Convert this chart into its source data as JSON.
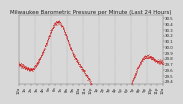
{
  "title": "Milwaukee Barometric Pressure per Minute (Last 24 Hours)",
  "background_color": "#d8d8d8",
  "plot_bg_color": "#d8d8d8",
  "line_color": "#cc0000",
  "grid_color": "#aaaaaa",
  "ylim": [
    29.35,
    30.55
  ],
  "ytick_values": [
    29.4,
    29.5,
    29.6,
    29.7,
    29.8,
    29.9,
    30.0,
    30.1,
    30.2,
    30.3,
    30.4,
    30.5
  ],
  "num_points": 1440,
  "title_fontsize": 4.0,
  "tick_fontsize": 2.8,
  "line_width": 0.5,
  "marker_size": 0.7,
  "num_vgrid": 9
}
